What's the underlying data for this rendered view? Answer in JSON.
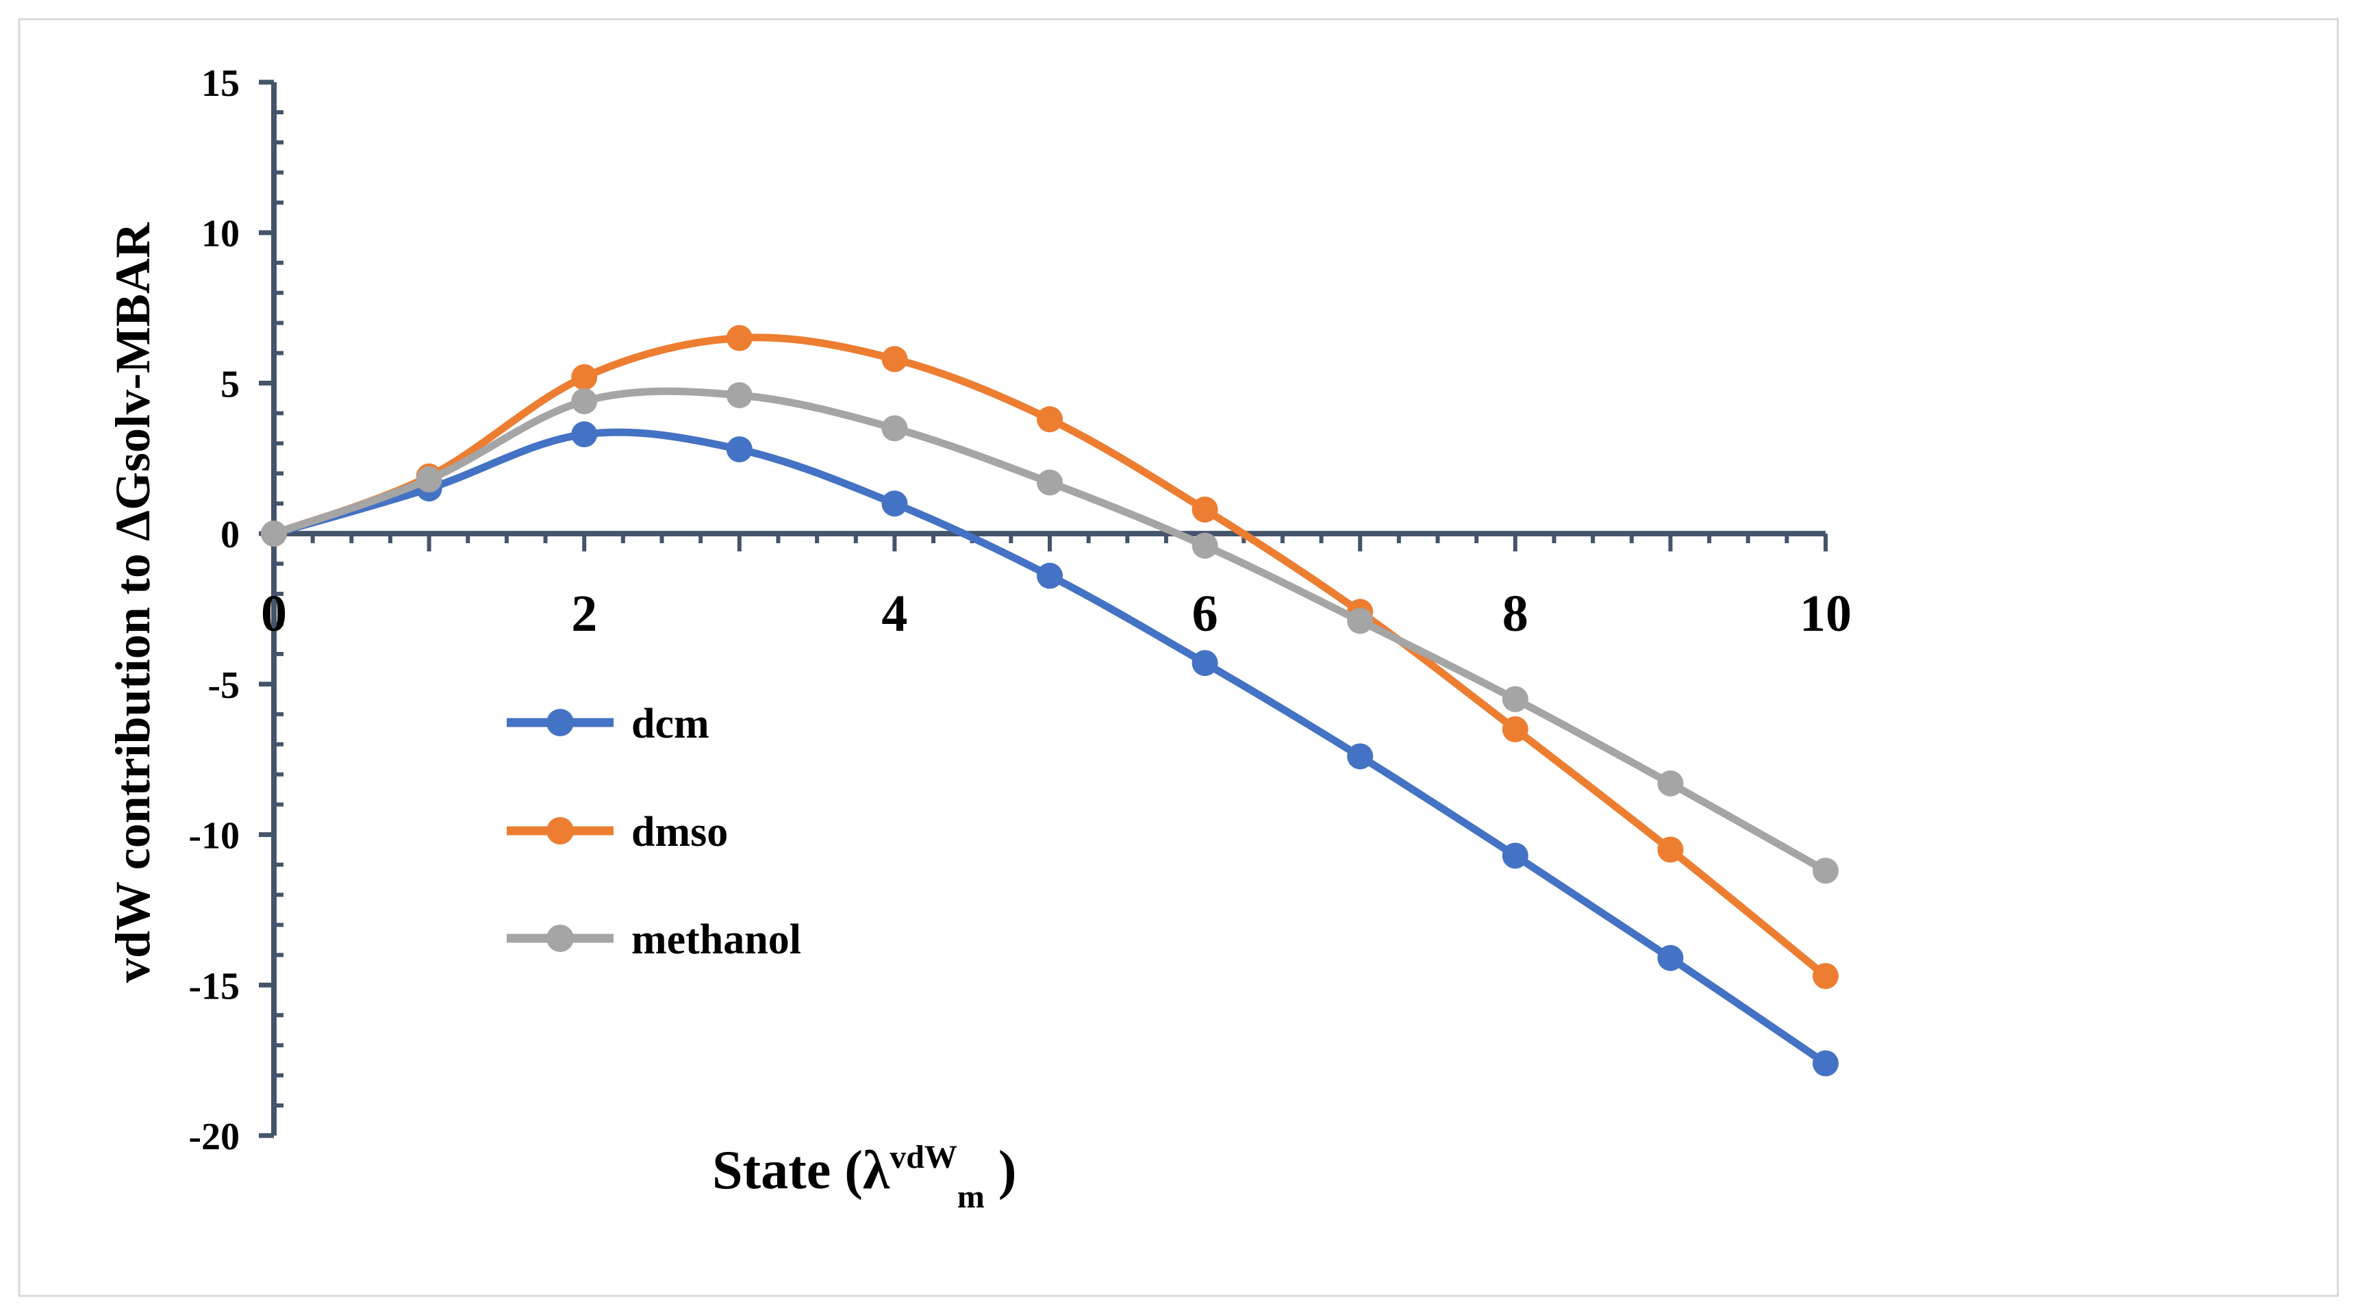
{
  "chart_data": {
    "type": "line",
    "smooth": true,
    "title": "",
    "xlabel": "State (λ",
    "xlabel_sup": "vdW",
    "xlabel_sub": "m",
    "xlabel_end": " )",
    "ylabel": "vdW contribution to ΔGsolv-MBAR",
    "x": [
      0,
      1,
      2,
      3,
      4,
      5,
      6,
      7,
      8,
      9,
      10
    ],
    "xlim": [
      0,
      10
    ],
    "ylim": [
      -20,
      15
    ],
    "xticks": [
      "0",
      "2",
      "4",
      "6",
      "8",
      "10"
    ],
    "yticks": [
      "15",
      "10",
      "5",
      "0",
      "-5",
      "-10",
      "-15",
      "-20"
    ],
    "legend_position": "left",
    "series": [
      {
        "name": "dcm",
        "color": "#4472c4",
        "values": [
          0,
          1.5,
          3.3,
          2.8,
          1.0,
          -1.4,
          -4.3,
          -7.4,
          -10.7,
          -14.1,
          -17.6
        ]
      },
      {
        "name": "dmso",
        "color": "#ed7d31",
        "values": [
          0,
          1.9,
          5.2,
          6.5,
          5.8,
          3.8,
          0.8,
          -2.6,
          -6.5,
          -10.5,
          -14.7
        ]
      },
      {
        "name": "methanol",
        "color": "#a5a5a5",
        "values": [
          0,
          1.8,
          4.4,
          4.6,
          3.5,
          1.7,
          -0.4,
          -2.9,
          -5.5,
          -8.3,
          -11.2
        ]
      }
    ]
  }
}
